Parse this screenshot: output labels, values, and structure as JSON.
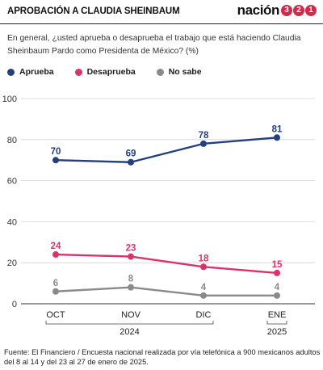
{
  "header": {
    "title": "APROBACIÓN A CLAUDIA SHEINBAUM",
    "brand_word": "nación",
    "brand_digits": [
      "3",
      "2",
      "1"
    ]
  },
  "question": "En general, ¿usted aprueba o desaprueba el trabajo que está haciendo Claudia Sheinbaum Pardo como Presidenta de México?  (%)",
  "source": "Fuente: El Financiero / Encuesta nacional realizada por vía telefónica a 900 mexicanos adultos del 8 al 14 y del 23 al 27 de enero de 2025.",
  "chart_data": {
    "type": "line",
    "x": [
      "OCT",
      "NOV",
      "DIC",
      "ENE"
    ],
    "year_groups": [
      {
        "label": "2024",
        "from": 0,
        "to": 2
      },
      {
        "label": "2025",
        "from": 3,
        "to": 3
      }
    ],
    "series": [
      {
        "name": "Aprueba",
        "color": "#23407e",
        "values": [
          70,
          69,
          78,
          81
        ]
      },
      {
        "name": "Desaprueba",
        "color": "#d8346a",
        "values": [
          24,
          23,
          18,
          15
        ]
      },
      {
        "name": "No sabe",
        "color": "#8a8a8a",
        "values": [
          6,
          8,
          4,
          4
        ]
      }
    ],
    "ylim": [
      0,
      100
    ],
    "yticks": [
      0,
      20,
      40,
      60,
      80,
      100
    ],
    "grid": true,
    "legend_position": "top-left"
  }
}
